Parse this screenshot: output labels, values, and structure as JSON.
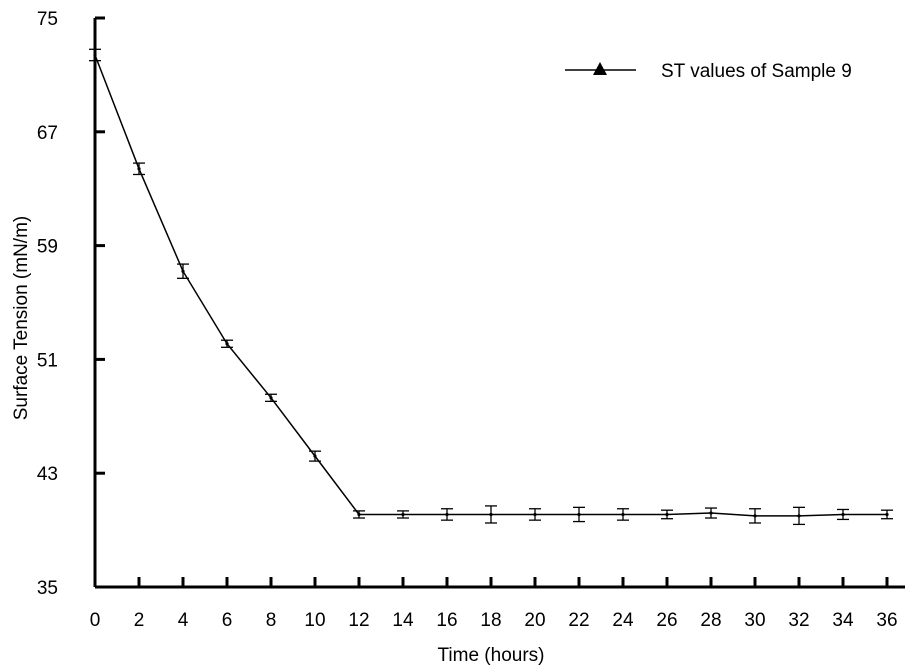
{
  "chart_data": {
    "type": "line",
    "title": "",
    "xlabel": "Time (hours)",
    "ylabel": "Surface Tension (mN/m)",
    "xlim": [
      0,
      36
    ],
    "ylim": [
      35,
      75
    ],
    "x_ticks": [
      "0",
      "2",
      "4",
      "6",
      "8",
      "10",
      "12",
      "14",
      "16",
      "18",
      "20",
      "22",
      "24",
      "26",
      "28",
      "30",
      "32",
      "34",
      "36"
    ],
    "y_ticks": [
      "35",
      "43",
      "51",
      "59",
      "67",
      "75"
    ],
    "grid": false,
    "legend_position": "top-right",
    "series": [
      {
        "name": "ST values of Sample 9",
        "marker": "triangle",
        "color": "#000000",
        "x": [
          0,
          2,
          4,
          6,
          8,
          10,
          12,
          14,
          16,
          18,
          20,
          22,
          24,
          26,
          28,
          30,
          32,
          34,
          36
        ],
        "values": [
          72.4,
          64.4,
          57.2,
          52.1,
          48.3,
          44.2,
          40.1,
          40.1,
          40.1,
          40.1,
          40.1,
          40.1,
          40.1,
          40.1,
          40.2,
          40.0,
          40.0,
          40.1,
          40.1
        ],
        "error": [
          0.4,
          0.4,
          0.5,
          0.25,
          0.25,
          0.35,
          0.25,
          0.25,
          0.4,
          0.6,
          0.4,
          0.5,
          0.4,
          0.3,
          0.35,
          0.5,
          0.6,
          0.35,
          0.3
        ]
      }
    ]
  }
}
